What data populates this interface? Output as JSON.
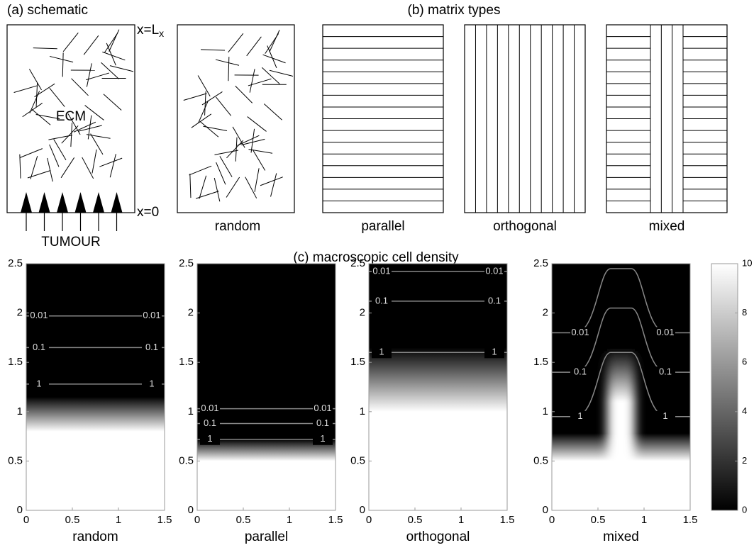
{
  "schematic": {
    "title": "(a) schematic",
    "top_label": "x=L",
    "top_label_sub": "x",
    "bottom_label": "x=0",
    "region_label": "ECM",
    "source_label": "TUMOUR"
  },
  "matrix_types": {
    "title": "(b) matrix types",
    "panels": [
      {
        "label": "random"
      },
      {
        "label": "parallel"
      },
      {
        "label": "orthogonal"
      },
      {
        "label": "mixed"
      }
    ]
  },
  "density": {
    "title": "(c) macroscopic cell density",
    "xlim": [
      0,
      1.5
    ],
    "ylim": [
      0,
      2.5
    ],
    "xticks": [
      0,
      0.5,
      1,
      1.5
    ],
    "yticks": [
      0,
      0.5,
      1,
      1.5,
      2,
      2.5
    ],
    "colorbar": {
      "lim": [
        0,
        10
      ],
      "ticks": [
        0,
        2,
        4,
        6,
        8,
        10
      ]
    },
    "plots": [
      {
        "label": "random",
        "white_below": 0.8,
        "black_above": 1.15,
        "contours": [
          {
            "level": 0.01,
            "y": 1.97
          },
          {
            "level": 0.1,
            "y": 1.65
          },
          {
            "level": 1,
            "y": 1.28
          }
        ]
      },
      {
        "label": "parallel",
        "white_below": 0.5,
        "black_above": 0.72,
        "contours": [
          {
            "level": 0.01,
            "y": 1.03
          },
          {
            "level": 0.1,
            "y": 0.88
          },
          {
            "level": 1,
            "y": 0.72
          }
        ]
      },
      {
        "label": "orthogonal",
        "white_below": 1.0,
        "black_above": 1.65,
        "contours": [
          {
            "level": 0.01,
            "y": 2.42
          },
          {
            "level": 0.1,
            "y": 2.12
          },
          {
            "level": 1,
            "y": 1.6
          }
        ]
      },
      {
        "label": "mixed",
        "white_below": 0.5,
        "black_above": 0.78,
        "channel": [
          0.6,
          0.9
        ],
        "channel_white_below": 1.1,
        "channel_black_above": 1.65,
        "contours": [
          {
            "level": 0.01,
            "y_outer": 1.8,
            "y_center": 2.45
          },
          {
            "level": 0.1,
            "y_outer": 1.4,
            "y_center": 2.05
          },
          {
            "level": 1,
            "y_outer": 0.95,
            "y_center": 1.6
          }
        ]
      }
    ]
  }
}
